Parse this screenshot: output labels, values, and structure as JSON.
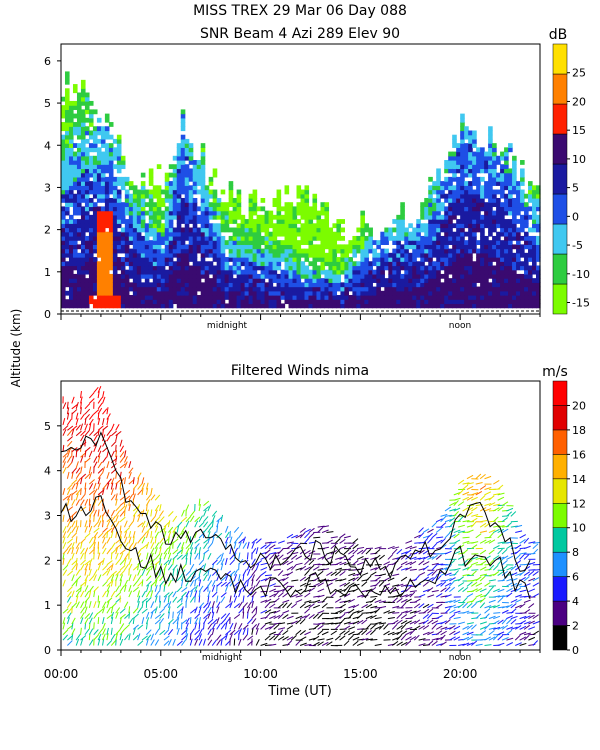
{
  "header": {
    "title_line1": "MISS TREX    29 Mar 06 Day 088",
    "title_line2": "SNR Beam 4 Azi 289 Elev 90"
  },
  "y_axis_label": "Altitude (km)",
  "x_axis_label": "Time (UT)",
  "markers": {
    "midnight": "midnight",
    "noon": "noon"
  },
  "palette": {
    "snr": [
      "#7cfc00",
      "#2ecc40",
      "#40c8f0",
      "#1e4fe6",
      "#1a1aa0",
      "#3a0a70",
      "#ff2000",
      "#ff8000",
      "#ffe000"
    ],
    "wind": [
      "#000000",
      "#4b0082",
      "#1a1aff",
      "#1e90ff",
      "#00c8a0",
      "#7cfc00",
      "#e6e600",
      "#ffb000",
      "#ff6000",
      "#e00000",
      "#ff0000"
    ]
  },
  "chart_data": [
    {
      "type": "heatmap",
      "title": "SNR Beam 4 Azi 289 Elev 90",
      "xlabel": "",
      "ylabel": "Altitude (km)",
      "xlim": [
        0,
        24
      ],
      "ylim": [
        0,
        6.4
      ],
      "y_ticks": [
        "0",
        "1",
        "2",
        "3",
        "4",
        "5",
        "6"
      ],
      "colorbar": {
        "unit": "dB",
        "tick_labels": [
          "-15",
          "-10",
          "-5",
          "0",
          "5",
          "10",
          "15",
          "20",
          "25"
        ],
        "range": [
          -17,
          30
        ]
      },
      "coverage": [
        {
          "t": 0.0,
          "top": 5.5,
          "core": 2.0
        },
        {
          "t": 1.5,
          "top": 5.0,
          "core": 2.5
        },
        {
          "t": 2.5,
          "top": 4.5,
          "core": 2.4
        },
        {
          "t": 3.5,
          "top": 3.0,
          "core": 1.5
        },
        {
          "t": 5.0,
          "top": 3.5,
          "core": 1.0
        },
        {
          "t": 6.0,
          "top": 4.4,
          "core": 2.8
        },
        {
          "t": 8.0,
          "top": 2.8,
          "core": 1.0
        },
        {
          "t": 10.0,
          "top": 2.6,
          "core": 0.8
        },
        {
          "t": 12.0,
          "top": 3.0,
          "core": 0.6
        },
        {
          "t": 14.0,
          "top": 2.0,
          "core": 0.5
        },
        {
          "t": 16.0,
          "top": 2.0,
          "core": 1.2
        },
        {
          "t": 18.0,
          "top": 2.5,
          "core": 1.2
        },
        {
          "t": 20.0,
          "top": 4.3,
          "core": 3.0
        },
        {
          "t": 22.0,
          "top": 4.0,
          "core": 2.5
        },
        {
          "t": 23.5,
          "top": 3.0,
          "core": 1.5
        }
      ]
    },
    {
      "type": "scatter",
      "title": "Filtered Winds nima",
      "xlabel": "Time (UT)",
      "ylabel": "Altitude (km)",
      "xlim": [
        0,
        24
      ],
      "ylim": [
        0,
        6.0
      ],
      "x_ticks": [
        "00:00",
        "05:00",
        "10:00",
        "15:00",
        "20:00"
      ],
      "y_ticks": [
        "0",
        "1",
        "2",
        "3",
        "4",
        "5"
      ],
      "colorbar": {
        "unit": "m/s",
        "tick_labels": [
          "0",
          "2",
          "4",
          "6",
          "8",
          "10",
          "12",
          "14",
          "16",
          "18",
          "20"
        ],
        "range": [
          0,
          22
        ]
      },
      "wind_coverage": [
        {
          "t": 0.0,
          "top": 5.5,
          "speed": 16
        },
        {
          "t": 2.0,
          "top": 5.8,
          "speed": 18
        },
        {
          "t": 3.5,
          "top": 4.0,
          "speed": 14
        },
        {
          "t": 5.5,
          "top": 3.0,
          "speed": 10
        },
        {
          "t": 7.0,
          "top": 3.3,
          "speed": 8
        },
        {
          "t": 9.0,
          "top": 2.5,
          "speed": 5
        },
        {
          "t": 11.0,
          "top": 2.5,
          "speed": 3
        },
        {
          "t": 13.0,
          "top": 2.8,
          "speed": 2
        },
        {
          "t": 15.0,
          "top": 2.3,
          "speed": 2
        },
        {
          "t": 17.0,
          "top": 2.3,
          "speed": 3
        },
        {
          "t": 19.0,
          "top": 3.0,
          "speed": 5
        },
        {
          "t": 20.0,
          "top": 3.8,
          "speed": 11
        },
        {
          "t": 21.0,
          "top": 3.9,
          "speed": 13
        },
        {
          "t": 22.0,
          "top": 3.6,
          "speed": 9
        },
        {
          "t": 23.0,
          "top": 2.5,
          "speed": 5
        }
      ]
    }
  ]
}
